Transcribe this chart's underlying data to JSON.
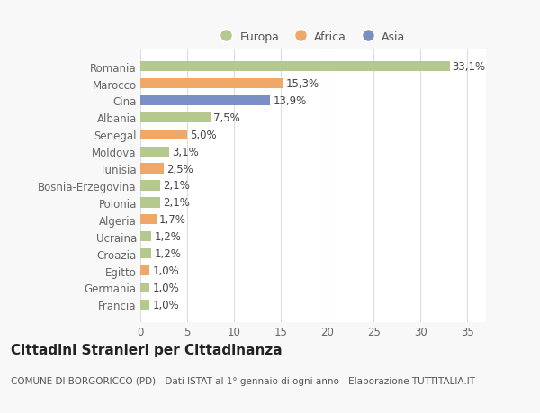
{
  "categories": [
    "Francia",
    "Germania",
    "Egitto",
    "Croazia",
    "Ucraina",
    "Algeria",
    "Polonia",
    "Bosnia-Erzegovina",
    "Tunisia",
    "Moldova",
    "Senegal",
    "Albania",
    "Cina",
    "Marocco",
    "Romania"
  ],
  "values": [
    1.0,
    1.0,
    1.0,
    1.2,
    1.2,
    1.7,
    2.1,
    2.1,
    2.5,
    3.1,
    5.0,
    7.5,
    13.9,
    15.3,
    33.1
  ],
  "labels": [
    "1,0%",
    "1,0%",
    "1,0%",
    "1,2%",
    "1,2%",
    "1,7%",
    "2,1%",
    "2,1%",
    "2,5%",
    "3,1%",
    "5,0%",
    "7,5%",
    "13,9%",
    "15,3%",
    "33,1%"
  ],
  "colors": [
    "#b5c98e",
    "#b5c98e",
    "#f0a868",
    "#b5c98e",
    "#b5c98e",
    "#f0a868",
    "#b5c98e",
    "#b5c98e",
    "#f0a868",
    "#b5c98e",
    "#f0a868",
    "#b5c98e",
    "#7a8fc4",
    "#f0a868",
    "#b5c98e"
  ],
  "legend_labels": [
    "Europa",
    "Africa",
    "Asia"
  ],
  "legend_colors": [
    "#b5c98e",
    "#f0a868",
    "#7a8fc4"
  ],
  "xlim": [
    0,
    37
  ],
  "xticks": [
    0,
    5,
    10,
    15,
    20,
    25,
    30,
    35
  ],
  "title": "Cittadini Stranieri per Cittadinanza",
  "subtitle": "COMUNE DI BORGORICCO (PD) - Dati ISTAT al 1° gennaio di ogni anno - Elaborazione TUTTITALIA.IT",
  "bg_color": "#f8f8f8",
  "plot_bg_color": "#ffffff",
  "grid_color": "#dddddd",
  "bar_height": 0.6,
  "label_fontsize": 8.5,
  "tick_fontsize": 8.5,
  "title_fontsize": 11,
  "subtitle_fontsize": 7.5
}
